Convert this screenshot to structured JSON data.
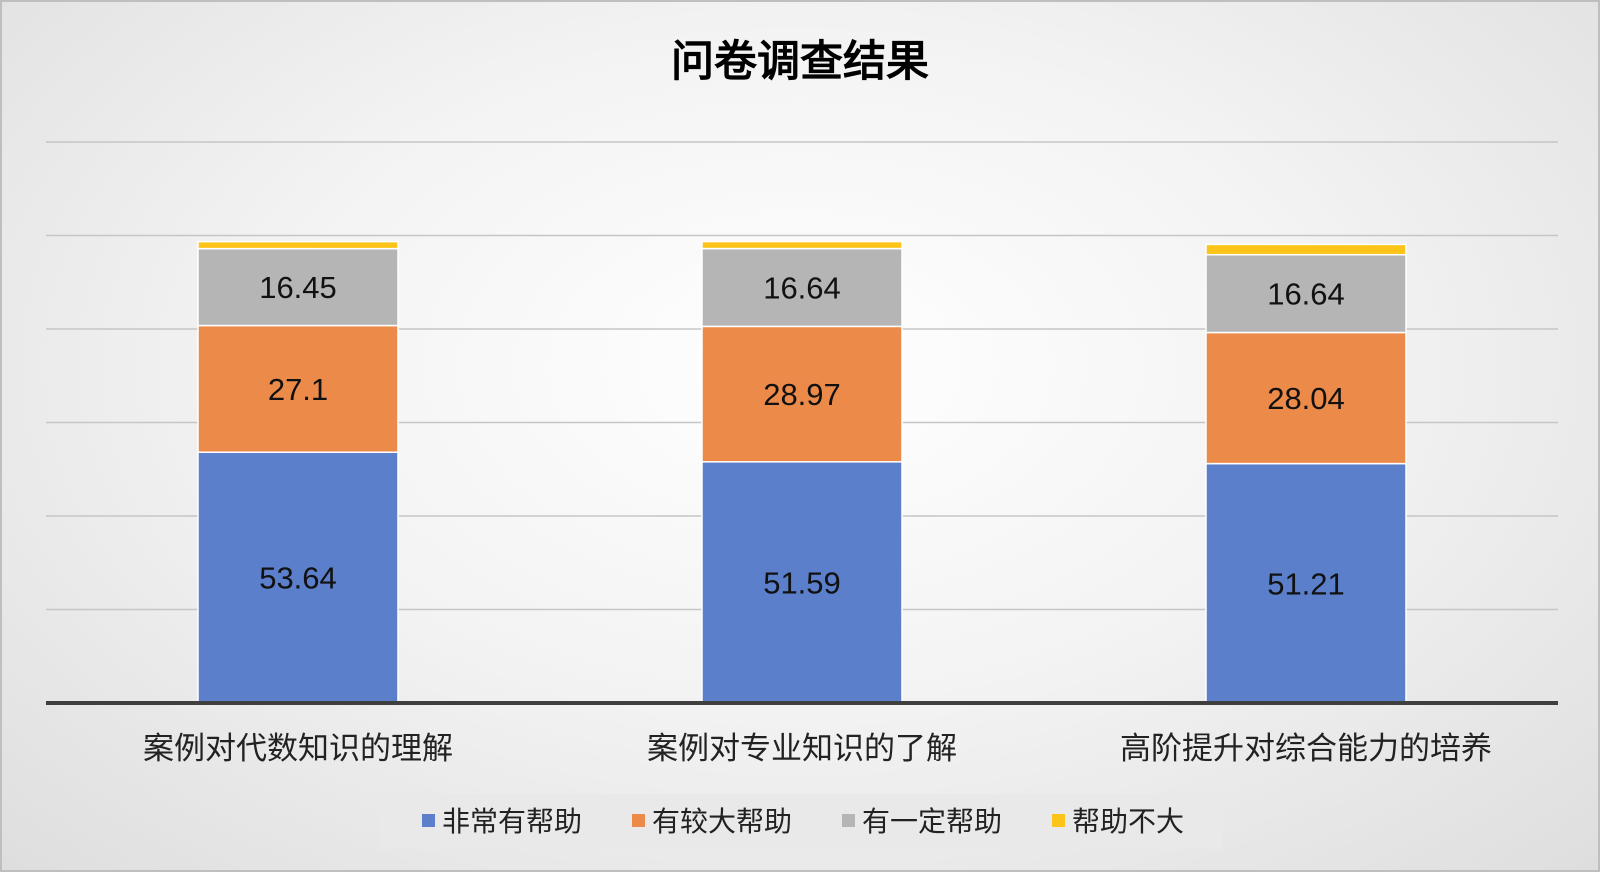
{
  "chart_data": {
    "type": "bar",
    "stacked": true,
    "title": "问卷调查结果",
    "categories": [
      "案例对代数知识的理解",
      "案例对专业知识的了解",
      "高阶提升对综合能力的培养"
    ],
    "series": [
      {
        "name": "非常有帮助",
        "values": [
          53.64,
          51.59,
          51.21
        ],
        "color": "#5b7fca"
      },
      {
        "name": "有较大帮助",
        "values": [
          27.1,
          28.97,
          28.04
        ],
        "color": "#ec8a4a"
      },
      {
        "name": "有一定帮助",
        "values": [
          16.45,
          16.64,
          16.64
        ],
        "color": "#b5b5b5"
      },
      {
        "name": "帮助不大",
        "values": [
          1.5,
          1.5,
          2.2
        ],
        "color": "#fcc419"
      }
    ],
    "data_labels": [
      [
        "53.64",
        "51.59",
        "51.21"
      ],
      [
        "27.1",
        "28.97",
        "28.04"
      ],
      [
        "16.45",
        "16.64",
        "16.64"
      ]
    ],
    "ylim": [
      0,
      120
    ],
    "gridlines": true,
    "legend_position": "bottom"
  }
}
